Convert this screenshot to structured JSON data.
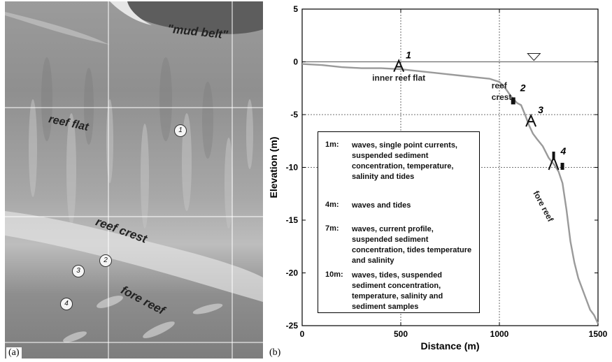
{
  "panel_a": {
    "label": "(a)",
    "zone_labels": {
      "mud_belt": "\"mud belt\"",
      "reef_flat": "reef flat",
      "reef_crest": "reef crest",
      "fore_reef": "fore reef"
    },
    "site_markers": [
      "1",
      "2",
      "3",
      "4"
    ]
  },
  "panel_b": {
    "label": "(b)"
  },
  "chart_data": {
    "type": "line",
    "xlabel": "Distance (m)",
    "ylabel": "Elevation (m)",
    "xlim": [
      0,
      1500
    ],
    "ylim": [
      -25,
      5
    ],
    "xticks": [
      0,
      500,
      1000,
      1500
    ],
    "yticks": [
      5,
      0,
      -5,
      -10,
      -15,
      -20,
      -25
    ],
    "grid": "dashed at x=500, x=1000, y=-5, y=-10",
    "water_level": 0,
    "series": [
      {
        "color": "#9a9a9a",
        "x": [
          0,
          100,
          200,
          300,
          400,
          500,
          600,
          700,
          800,
          900,
          950,
          1000,
          1030,
          1060,
          1090,
          1110,
          1130,
          1150,
          1170,
          1190,
          1220,
          1250,
          1280,
          1300,
          1320,
          1340,
          1360,
          1380,
          1400,
          1420,
          1440,
          1460,
          1480,
          1500
        ],
        "y": [
          -0.2,
          -0.3,
          -0.5,
          -0.6,
          -0.6,
          -0.7,
          -0.9,
          -1.1,
          -1.3,
          -1.5,
          -1.6,
          -1.9,
          -2.5,
          -3.3,
          -3.9,
          -4.1,
          -5.0,
          -6.0,
          -6.8,
          -7.3,
          -8.0,
          -9.1,
          -9.8,
          -10.4,
          -11.5,
          -14.0,
          -17.0,
          -19.0,
          -20.5,
          -21.5,
          -22.5,
          -23.5,
          -24.0,
          -24.8
        ]
      }
    ],
    "instruments": [
      {
        "label": "1",
        "x": 490,
        "y": -0.6
      },
      {
        "label": "2",
        "x": 1070,
        "y": -3.7
      },
      {
        "label": "3",
        "x": 1160,
        "y": -5.8
      },
      {
        "label": "4",
        "x": 1275,
        "y": -9.7
      }
    ],
    "annotations": [
      {
        "text": "inner reef flat",
        "x": 490,
        "y": -1.8
      },
      {
        "text": "reef",
        "x": 960,
        "y": -2.5
      },
      {
        "text": "crest",
        "x": 960,
        "y": -3.6
      },
      {
        "text": "fore reef",
        "x": 1170,
        "y": -12.4
      }
    ],
    "legend": [
      {
        "key": "1m:",
        "text": "waves, single point currents, suspended sediment concentration, temperature, salinity and tides"
      },
      {
        "key": "4m:",
        "text": "waves and tides"
      },
      {
        "key": "7m:",
        "text": "waves, current profile, suspended sediment concentration, tides temperature and salinity"
      },
      {
        "key": "10m:",
        "text": "waves, tides, suspended sediment concentration, temperature, salinity and sediment samples"
      }
    ]
  }
}
